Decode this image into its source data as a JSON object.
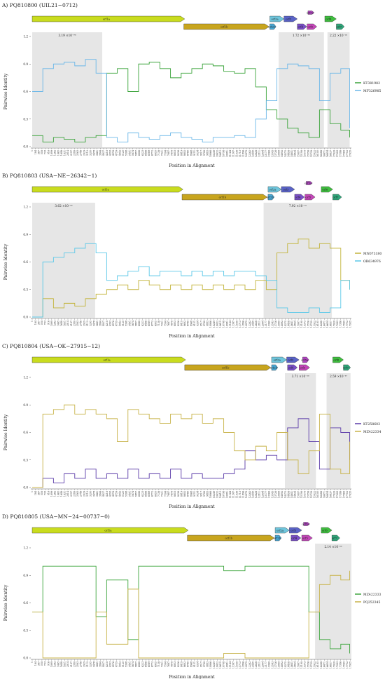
{
  "figure": {
    "panels": [
      {
        "id": "A",
        "title": "A) PQ810800 (UIL21−0712)",
        "legend": [
          {
            "name": "KT381982",
            "color": "#3aa33a"
          },
          {
            "name": "MF326985",
            "color": "#6bb7e8"
          }
        ],
        "genes": [
          {
            "name": "orf1a",
            "start": 1,
            "end": 8600,
            "row": 0,
            "color": "#c9dc1e"
          },
          {
            "name": "orf1b",
            "start": 8550,
            "end": 13350,
            "row": 1,
            "color": "#c8a51e"
          },
          {
            "name": "orf2a",
            "start": 13400,
            "end": 14200,
            "row": 0,
            "color": "#6fc6dd"
          },
          {
            "name": "orf2b",
            "start": 13400,
            "end": 13750,
            "row": 1,
            "color": "#4aa9d6"
          },
          {
            "name": "orf3",
            "start": 14200,
            "end": 14950,
            "row": 0,
            "color": "#5a63c8"
          },
          {
            "name": "orf4",
            "start": 14950,
            "end": 15480,
            "row": 1,
            "color": "#7a4fc8"
          },
          {
            "name": "orf5a",
            "start": 15550,
            "end": 15900,
            "row": -1,
            "color": "#b144c2"
          },
          {
            "name": "orf5",
            "start": 15500,
            "end": 16050,
            "row": 1,
            "color": "#c346b8"
          },
          {
            "name": "orf6",
            "start": 16500,
            "end": 17150,
            "row": 0,
            "color": "#3fbf3f"
          },
          {
            "name": "orf7",
            "start": 17150,
            "end": 17600,
            "row": 1,
            "color": "#2fa67a"
          }
        ],
        "shaded": [
          {
            "start": 1,
            "end": 3950,
            "label": "3.19 ×10⁻⁹⁸"
          },
          {
            "start": 13900,
            "end": 16450,
            "label": "1.72 ×10⁻⁸⁸"
          },
          {
            "start": 16650,
            "end": 17900,
            "label": "2.22 ×10⁻⁵⁵"
          }
        ]
      },
      {
        "id": "B",
        "title": "B) PQ810803 (USA−NE−26342−1)",
        "legend": [
          {
            "name": "MN073180",
            "color": "#c2b33a"
          },
          {
            "name": "OR634976",
            "color": "#5bc8e8"
          }
        ],
        "genes": [
          {
            "name": "orf1a",
            "start": 1,
            "end": 8500,
            "row": 0,
            "color": "#c9dc1e"
          },
          {
            "name": "orf1b",
            "start": 8450,
            "end": 13250,
            "row": 1,
            "color": "#c8a51e"
          },
          {
            "name": "orf2a",
            "start": 13300,
            "end": 14050,
            "row": 0,
            "color": "#6fc6dd"
          },
          {
            "name": "orf2b",
            "start": 13300,
            "end": 13650,
            "row": 1,
            "color": "#4aa9d6"
          },
          {
            "name": "orf3",
            "start": 14050,
            "end": 14800,
            "row": 0,
            "color": "#5a63c8"
          },
          {
            "name": "orf4",
            "start": 14800,
            "end": 15350,
            "row": 1,
            "color": "#7a4fc8"
          },
          {
            "name": "orf5a",
            "start": 15450,
            "end": 15800,
            "row": -1,
            "color": "#b144c2"
          },
          {
            "name": "orf5",
            "start": 15380,
            "end": 15950,
            "row": 1,
            "color": "#c346b8"
          },
          {
            "name": "orf6",
            "start": 16300,
            "end": 16950,
            "row": 0,
            "color": "#3fbf3f"
          },
          {
            "name": "orf7",
            "start": 16950,
            "end": 17450,
            "row": 1,
            "color": "#2fa67a"
          }
        ],
        "shaded": [
          {
            "start": 1,
            "end": 3550,
            "label": "3.62 ×10⁻⁴⁰"
          },
          {
            "start": 13050,
            "end": 16900,
            "label": "7.92 ×10⁻⁷⁸"
          }
        ]
      },
      {
        "id": "C",
        "title": "C) PQ810804 (USA−OK−27915−12)",
        "legend": [
          {
            "name": "KT258603",
            "color": "#5a3aa8"
          },
          {
            "name": "MZ422334",
            "color": "#c8b34a"
          }
        ],
        "genes": [
          {
            "name": "orf1a",
            "start": 1,
            "end": 8650,
            "row": 0,
            "color": "#c9dc1e"
          },
          {
            "name": "orf1b",
            "start": 8600,
            "end": 13450,
            "row": 1,
            "color": "#c8a51e"
          },
          {
            "name": "orf2a",
            "start": 13500,
            "end": 14350,
            "row": 0,
            "color": "#6fc6dd"
          },
          {
            "name": "orf2b",
            "start": 13500,
            "end": 13850,
            "row": 1,
            "color": "#4aa9d6"
          },
          {
            "name": "orf3",
            "start": 14350,
            "end": 15050,
            "row": 0,
            "color": "#5a63c8"
          },
          {
            "name": "orf4",
            "start": 14400,
            "end": 14950,
            "row": 1,
            "color": "#7a4fc8"
          },
          {
            "name": "orf5a",
            "start": 15250,
            "end": 15600,
            "row": 0,
            "color": "#b144c2"
          },
          {
            "name": "orf5",
            "start": 15050,
            "end": 15650,
            "row": 1,
            "color": "#c346b8"
          },
          {
            "name": "orf6",
            "start": 16950,
            "end": 17550,
            "row": 0,
            "color": "#3fbf3f"
          },
          {
            "name": "orf7",
            "start": 17550,
            "end": 17950,
            "row": 1,
            "color": "#2fa67a"
          }
        ],
        "shaded": [
          {
            "start": 14250,
            "end": 16000,
            "label": "3.71 ×10⁻²⁸"
          },
          {
            "start": 16600,
            "end": 17950,
            "label": "2.59 ×10⁻³⁷"
          }
        ]
      },
      {
        "id": "D",
        "title": "D) PQ810805 (USA−MN−24−00737−0)",
        "legend": [
          {
            "name": "MZ422333",
            "color": "#3fa63f"
          },
          {
            "name": "PQ252345",
            "color": "#c8b34a"
          }
        ],
        "genes": [
          {
            "name": "orf1a",
            "start": 1,
            "end": 8800,
            "row": 0,
            "color": "#c9dc1e"
          },
          {
            "name": "orf1b",
            "start": 8750,
            "end": 13650,
            "row": 1,
            "color": "#c8a51e"
          },
          {
            "name": "orf2a",
            "start": 13700,
            "end": 14500,
            "row": 0,
            "color": "#6fc6dd"
          },
          {
            "name": "orf2b",
            "start": 13700,
            "end": 14050,
            "row": 1,
            "color": "#4aa9d6"
          },
          {
            "name": "orf3",
            "start": 14500,
            "end": 15200,
            "row": 0,
            "color": "#5a63c8"
          },
          {
            "name": "orf4",
            "start": 14600,
            "end": 15150,
            "row": 1,
            "color": "#7a4fc8"
          },
          {
            "name": "orf5a",
            "start": 15300,
            "end": 15650,
            "row": -1,
            "color": "#b144c2"
          },
          {
            "name": "orf5",
            "start": 15200,
            "end": 15800,
            "row": 1,
            "color": "#c346b8"
          },
          {
            "name": "orf6",
            "start": 16300,
            "end": 16900,
            "row": 0,
            "color": "#3fbf3f"
          },
          {
            "name": "orf7",
            "start": 16900,
            "end": 17350,
            "row": 1,
            "color": "#2fa67a"
          }
        ],
        "shaded": [
          {
            "start": 15950,
            "end": 18000,
            "label": "2.14 ×10⁻⁶⁸"
          }
        ]
      }
    ]
  },
  "chart_data": [
    {
      "type": "line",
      "title": "A) PQ810800 (UIL21−0712)",
      "xlabel": "Position in Alignment",
      "ylabel": "Pairwise Identity",
      "xlim": [
        1,
        18000
      ],
      "ylim": [
        0,
        1
      ],
      "yticks": [
        "0.0",
        "0.3",
        "0.6",
        "0.9",
        "1.2"
      ],
      "grid": false,
      "legend_position": "right",
      "x": [
        1,
        600,
        1200,
        1800,
        2400,
        3000,
        3600,
        4200,
        4800,
        5400,
        6000,
        6600,
        7200,
        7800,
        8400,
        9000,
        9600,
        10200,
        10800,
        11400,
        12000,
        12600,
        13200,
        13800,
        14400,
        15000,
        15600,
        16200,
        16800,
        17400,
        17900
      ],
      "series": [
        {
          "name": "KT381982",
          "color": "#3aa33a",
          "values": [
            0.12,
            0.05,
            0.1,
            0.08,
            0.05,
            0.1,
            0.12,
            0.8,
            0.85,
            0.6,
            0.9,
            0.92,
            0.85,
            0.75,
            0.8,
            0.85,
            0.9,
            0.88,
            0.82,
            0.8,
            0.85,
            0.65,
            0.4,
            0.3,
            0.2,
            0.15,
            0.1,
            0.4,
            0.25,
            0.18,
            0.1
          ]
        },
        {
          "name": "MF326985",
          "color": "#6bb7e8",
          "values": [
            0.6,
            0.85,
            0.9,
            0.92,
            0.88,
            0.95,
            0.8,
            0.1,
            0.05,
            0.15,
            0.1,
            0.08,
            0.12,
            0.15,
            0.1,
            0.08,
            0.05,
            0.1,
            0.1,
            0.12,
            0.1,
            0.3,
            0.5,
            0.85,
            0.9,
            0.88,
            0.85,
            0.5,
            0.8,
            0.85,
            0.2
          ]
        }
      ]
    },
    {
      "type": "line",
      "title": "B) PQ810803 (USA−NE−26342−1)",
      "xlabel": "Position in Alignment",
      "ylabel": "Pairwise Identity",
      "xlim": [
        1,
        18000
      ],
      "ylim": [
        0,
        1
      ],
      "yticks": [
        "0.0",
        "0.3",
        "0.6",
        "0.9",
        "1.2"
      ],
      "grid": false,
      "legend_position": "right",
      "x": [
        1,
        600,
        1200,
        1800,
        2400,
        3000,
        3600,
        4200,
        4800,
        5400,
        6000,
        6600,
        7200,
        7800,
        8400,
        9000,
        9600,
        10200,
        10800,
        11400,
        12000,
        12600,
        13200,
        13800,
        14400,
        15000,
        15600,
        16200,
        16800,
        17400,
        17900
      ],
      "series": [
        {
          "name": "MN073180",
          "color": "#c2b33a",
          "values": [
            0.0,
            0.2,
            0.1,
            0.15,
            0.12,
            0.2,
            0.25,
            0.3,
            0.35,
            0.3,
            0.4,
            0.35,
            0.3,
            0.35,
            0.3,
            0.35,
            0.3,
            0.35,
            0.3,
            0.35,
            0.3,
            0.4,
            0.3,
            0.7,
            0.8,
            0.85,
            0.75,
            0.8,
            0.75,
            0.4,
            0.3
          ]
        },
        {
          "name": "OR634976",
          "color": "#5bc8e8",
          "values": [
            0.0,
            0.6,
            0.65,
            0.7,
            0.75,
            0.8,
            0.7,
            0.4,
            0.45,
            0.5,
            0.55,
            0.45,
            0.5,
            0.5,
            0.45,
            0.5,
            0.45,
            0.5,
            0.45,
            0.5,
            0.5,
            0.45,
            0.4,
            0.1,
            0.05,
            0.05,
            0.1,
            0.05,
            0.1,
            0.4,
            0.3
          ]
        }
      ]
    },
    {
      "type": "line",
      "title": "C) PQ810804 (USA−OK−27915−12)",
      "xlabel": "Position in Alignment",
      "ylabel": "Pairwise Identity",
      "xlim": [
        1,
        18000
      ],
      "ylim": [
        0,
        1
      ],
      "yticks": [
        "0.0",
        "0.3",
        "0.6",
        "0.9",
        "1.2"
      ],
      "grid": false,
      "legend_position": "right",
      "x": [
        1,
        600,
        1200,
        1800,
        2400,
        3000,
        3600,
        4200,
        4800,
        5400,
        6000,
        6600,
        7200,
        7800,
        8400,
        9000,
        9600,
        10200,
        10800,
        11400,
        12000,
        12600,
        13200,
        13800,
        14400,
        15000,
        15600,
        16200,
        16800,
        17400,
        17900
      ],
      "series": [
        {
          "name": "KT258603",
          "color": "#5a3aa8",
          "values": [
            0.0,
            0.1,
            0.05,
            0.15,
            0.1,
            0.2,
            0.1,
            0.15,
            0.1,
            0.2,
            0.1,
            0.15,
            0.1,
            0.2,
            0.1,
            0.15,
            0.1,
            0.1,
            0.15,
            0.2,
            0.4,
            0.3,
            0.35,
            0.3,
            0.65,
            0.75,
            0.5,
            0.2,
            0.65,
            0.6,
            0.3
          ]
        },
        {
          "name": "MZ422334",
          "color": "#c8b34a",
          "values": [
            0.0,
            0.8,
            0.85,
            0.9,
            0.8,
            0.85,
            0.8,
            0.75,
            0.5,
            0.85,
            0.8,
            0.75,
            0.7,
            0.8,
            0.75,
            0.8,
            0.7,
            0.75,
            0.6,
            0.4,
            0.3,
            0.45,
            0.4,
            0.6,
            0.3,
            0.15,
            0.4,
            0.8,
            0.2,
            0.15,
            0.5
          ]
        }
      ]
    },
    {
      "type": "line",
      "title": "D) PQ810805 (USA−MN−24−00737−0)",
      "xlabel": "Position in Alignment",
      "ylabel": "Pairwise Identity",
      "xlim": [
        1,
        18000
      ],
      "ylim": [
        0,
        1
      ],
      "yticks": [
        "0.0",
        "0.3",
        "0.6",
        "0.9",
        "1.2"
      ],
      "grid": false,
      "legend_position": "right",
      "x": [
        1,
        600,
        1200,
        1800,
        2400,
        3000,
        3600,
        4200,
        4800,
        5400,
        6000,
        6600,
        7200,
        7800,
        8400,
        9000,
        9600,
        10200,
        10800,
        11400,
        12000,
        12600,
        13200,
        13800,
        14400,
        15000,
        15600,
        16200,
        16800,
        17400,
        17900
      ],
      "series": [
        {
          "name": "MZ422333",
          "color": "#3fa63f",
          "values": [
            0.5,
            1.0,
            1.0,
            1.0,
            1.0,
            1.0,
            0.45,
            0.85,
            0.85,
            0.2,
            1.0,
            1.0,
            1.0,
            1.0,
            1.0,
            1.0,
            1.0,
            1.0,
            0.95,
            0.95,
            1.0,
            1.0,
            1.0,
            1.0,
            1.0,
            1.0,
            0.5,
            0.2,
            0.1,
            0.15,
            0.05
          ]
        },
        {
          "name": "PQ252345",
          "color": "#c8b34a",
          "values": [
            0.5,
            0.0,
            0.0,
            0.0,
            0.0,
            0.0,
            0.5,
            0.15,
            0.15,
            0.75,
            0.0,
            0.0,
            0.0,
            0.0,
            0.0,
            0.0,
            0.0,
            0.0,
            0.05,
            0.05,
            0.0,
            0.0,
            0.0,
            0.0,
            0.0,
            0.0,
            0.5,
            0.8,
            0.9,
            0.85,
            0.95
          ]
        }
      ]
    }
  ]
}
